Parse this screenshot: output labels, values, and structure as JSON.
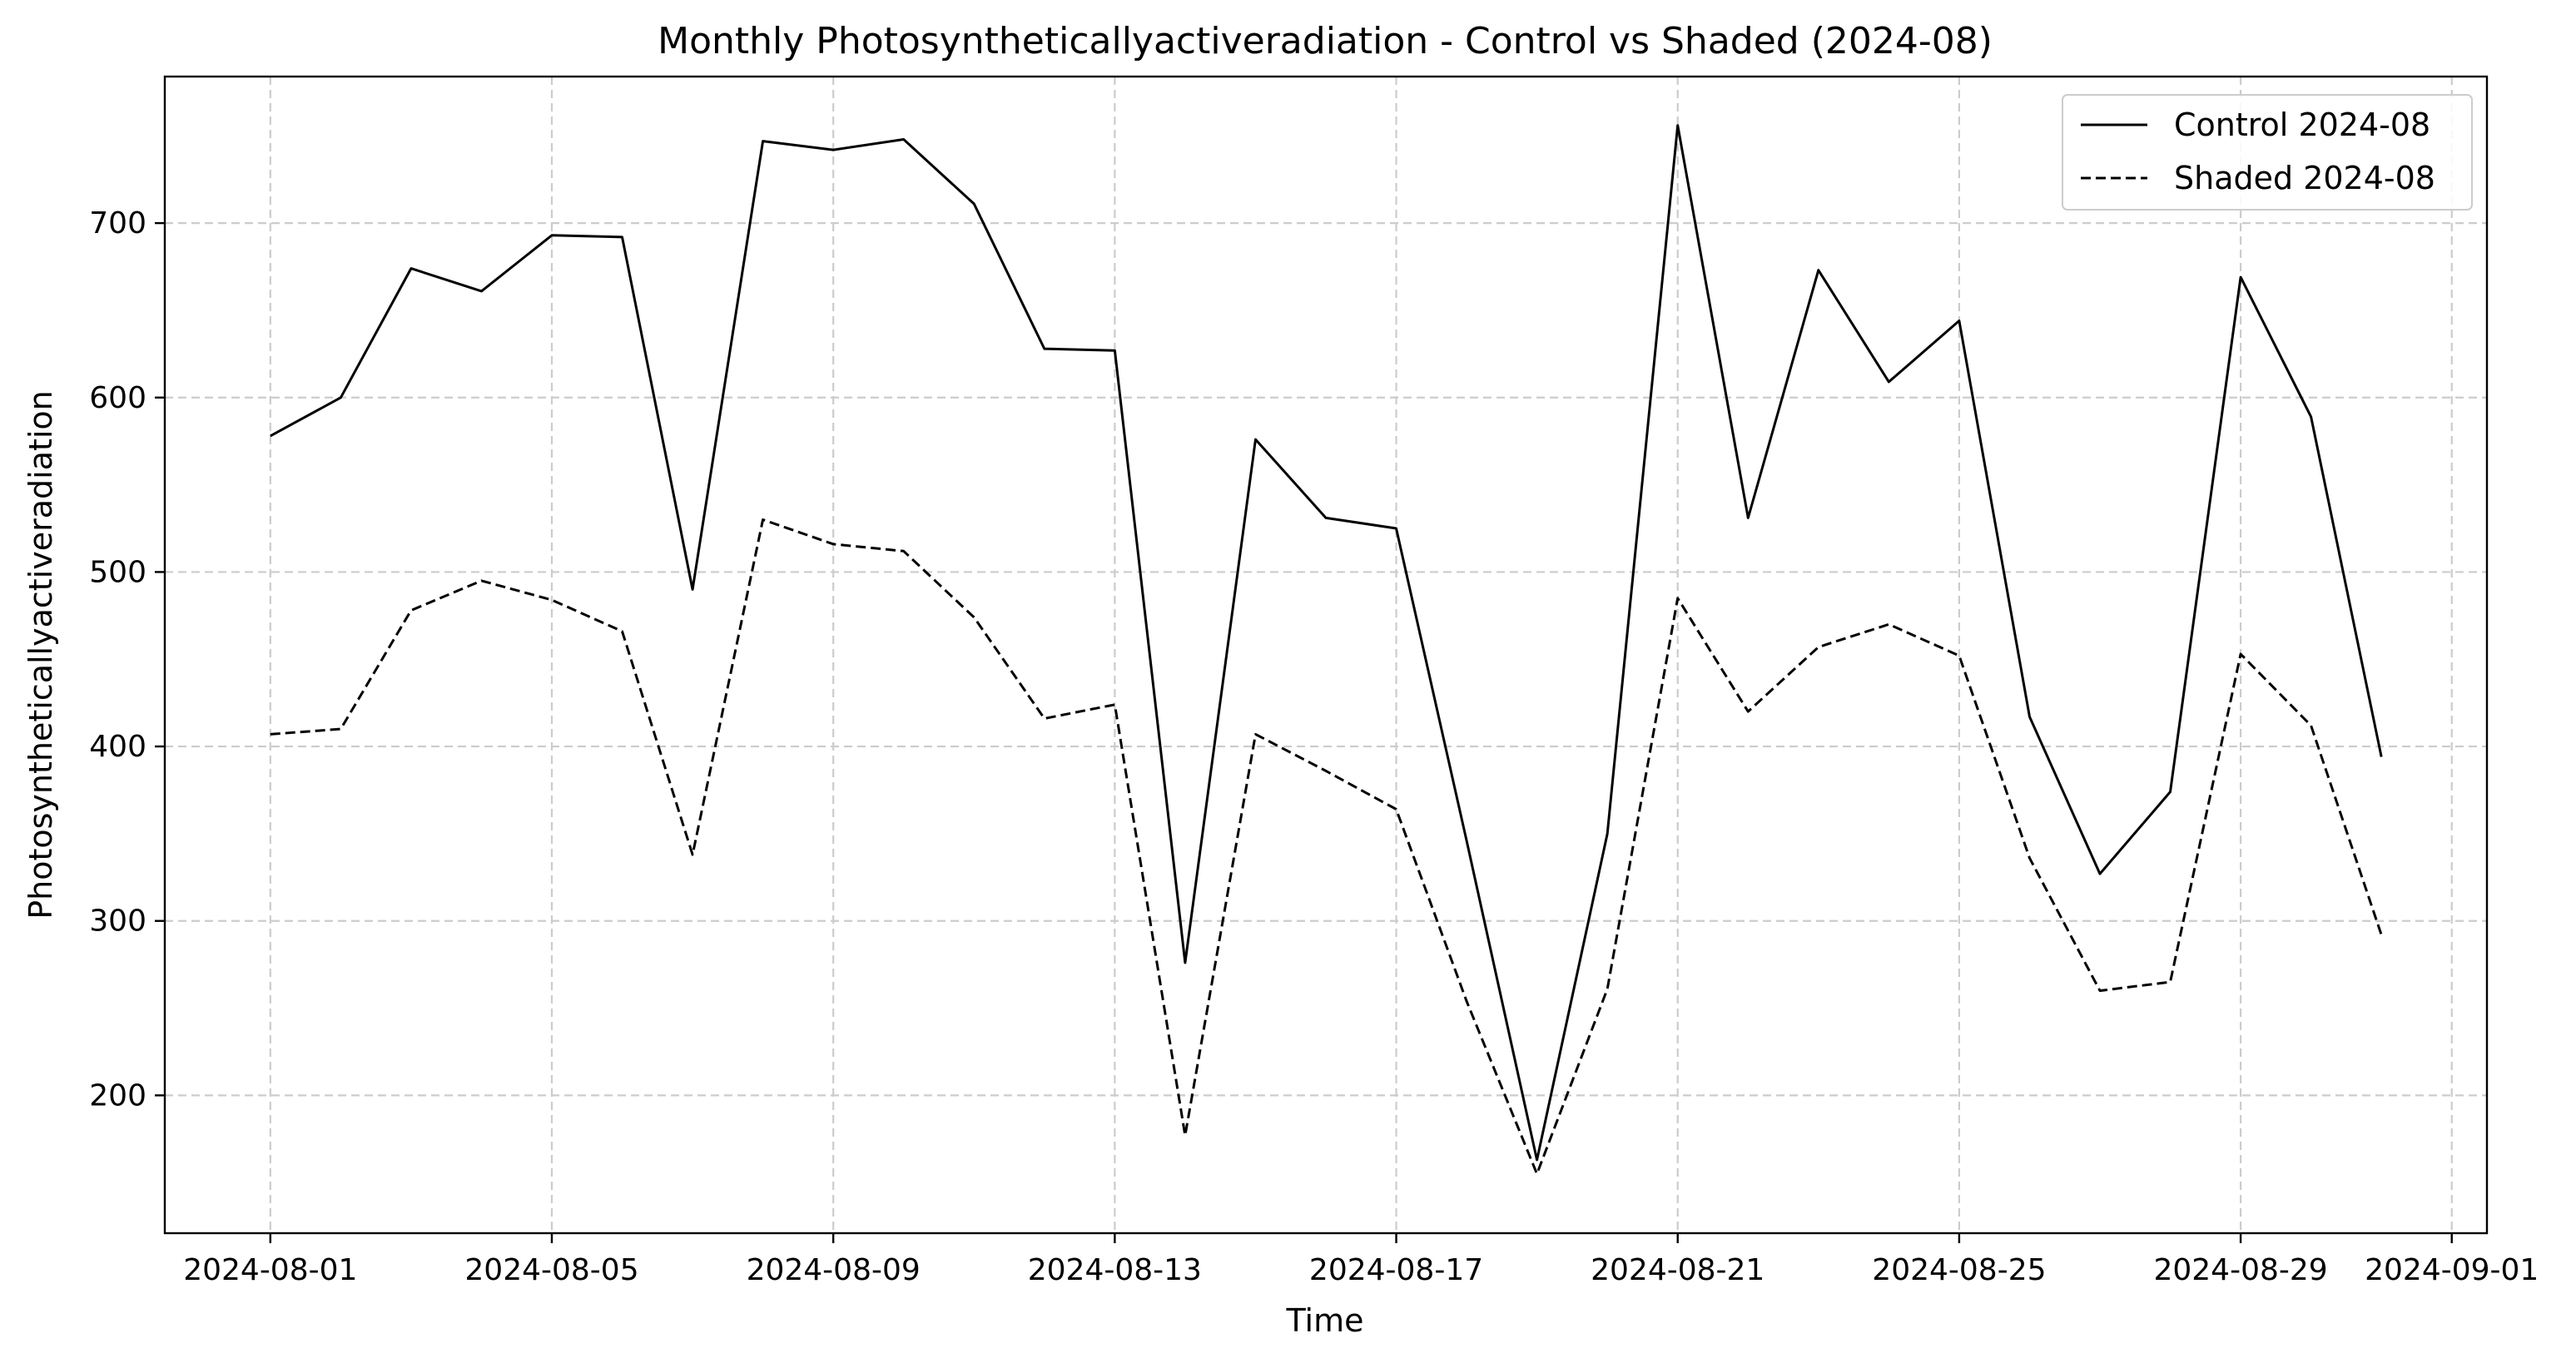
{
  "chart_data": {
    "type": "line",
    "title": "Monthly Photosyntheticallyactiveradiation - Control vs Shaded (2024-08)",
    "xlabel": "Time",
    "ylabel": "Photosyntheticallyactiveradiation",
    "x": [
      "2024-08-01",
      "2024-08-02",
      "2024-08-03",
      "2024-08-04",
      "2024-08-05",
      "2024-08-06",
      "2024-08-07",
      "2024-08-08",
      "2024-08-09",
      "2024-08-10",
      "2024-08-11",
      "2024-08-12",
      "2024-08-13",
      "2024-08-14",
      "2024-08-15",
      "2024-08-16",
      "2024-08-17",
      "2024-08-18",
      "2024-08-19",
      "2024-08-20",
      "2024-08-21",
      "2024-08-22",
      "2024-08-23",
      "2024-08-24",
      "2024-08-25",
      "2024-08-26",
      "2024-08-27",
      "2024-08-28",
      "2024-08-29",
      "2024-08-30",
      "2024-08-31"
    ],
    "series": [
      {
        "name": "Control 2024-08",
        "style": "solid",
        "color": "#000000",
        "values": [
          578,
          600,
          674,
          661,
          693,
          692,
          490,
          747,
          742,
          748,
          711,
          628,
          627,
          276,
          576,
          531,
          525,
          346,
          163,
          350,
          756,
          531,
          673,
          609,
          644,
          417,
          327,
          374,
          669,
          589,
          394
        ]
      },
      {
        "name": "Shaded 2024-08",
        "style": "dashed",
        "color": "#000000",
        "values": [
          407,
          410,
          478,
          495,
          484,
          466,
          338,
          530,
          516,
          512,
          474,
          416,
          424,
          177,
          407,
          386,
          364,
          254,
          155,
          261,
          485,
          420,
          457,
          470,
          452,
          336,
          260,
          265,
          453,
          412,
          292
        ]
      }
    ],
    "x_ticks": [
      "2024-08-01",
      "2024-08-05",
      "2024-08-09",
      "2024-08-13",
      "2024-08-17",
      "2024-08-21",
      "2024-08-25",
      "2024-08-29",
      "2024-09-01"
    ],
    "y_ticks": [
      200,
      300,
      400,
      500,
      600,
      700
    ],
    "xlim": [
      "2024-07-30T12:00",
      "2024-09-01T12:00"
    ],
    "ylim": [
      121,
      784
    ],
    "grid": true,
    "legend_position": "top-right"
  }
}
